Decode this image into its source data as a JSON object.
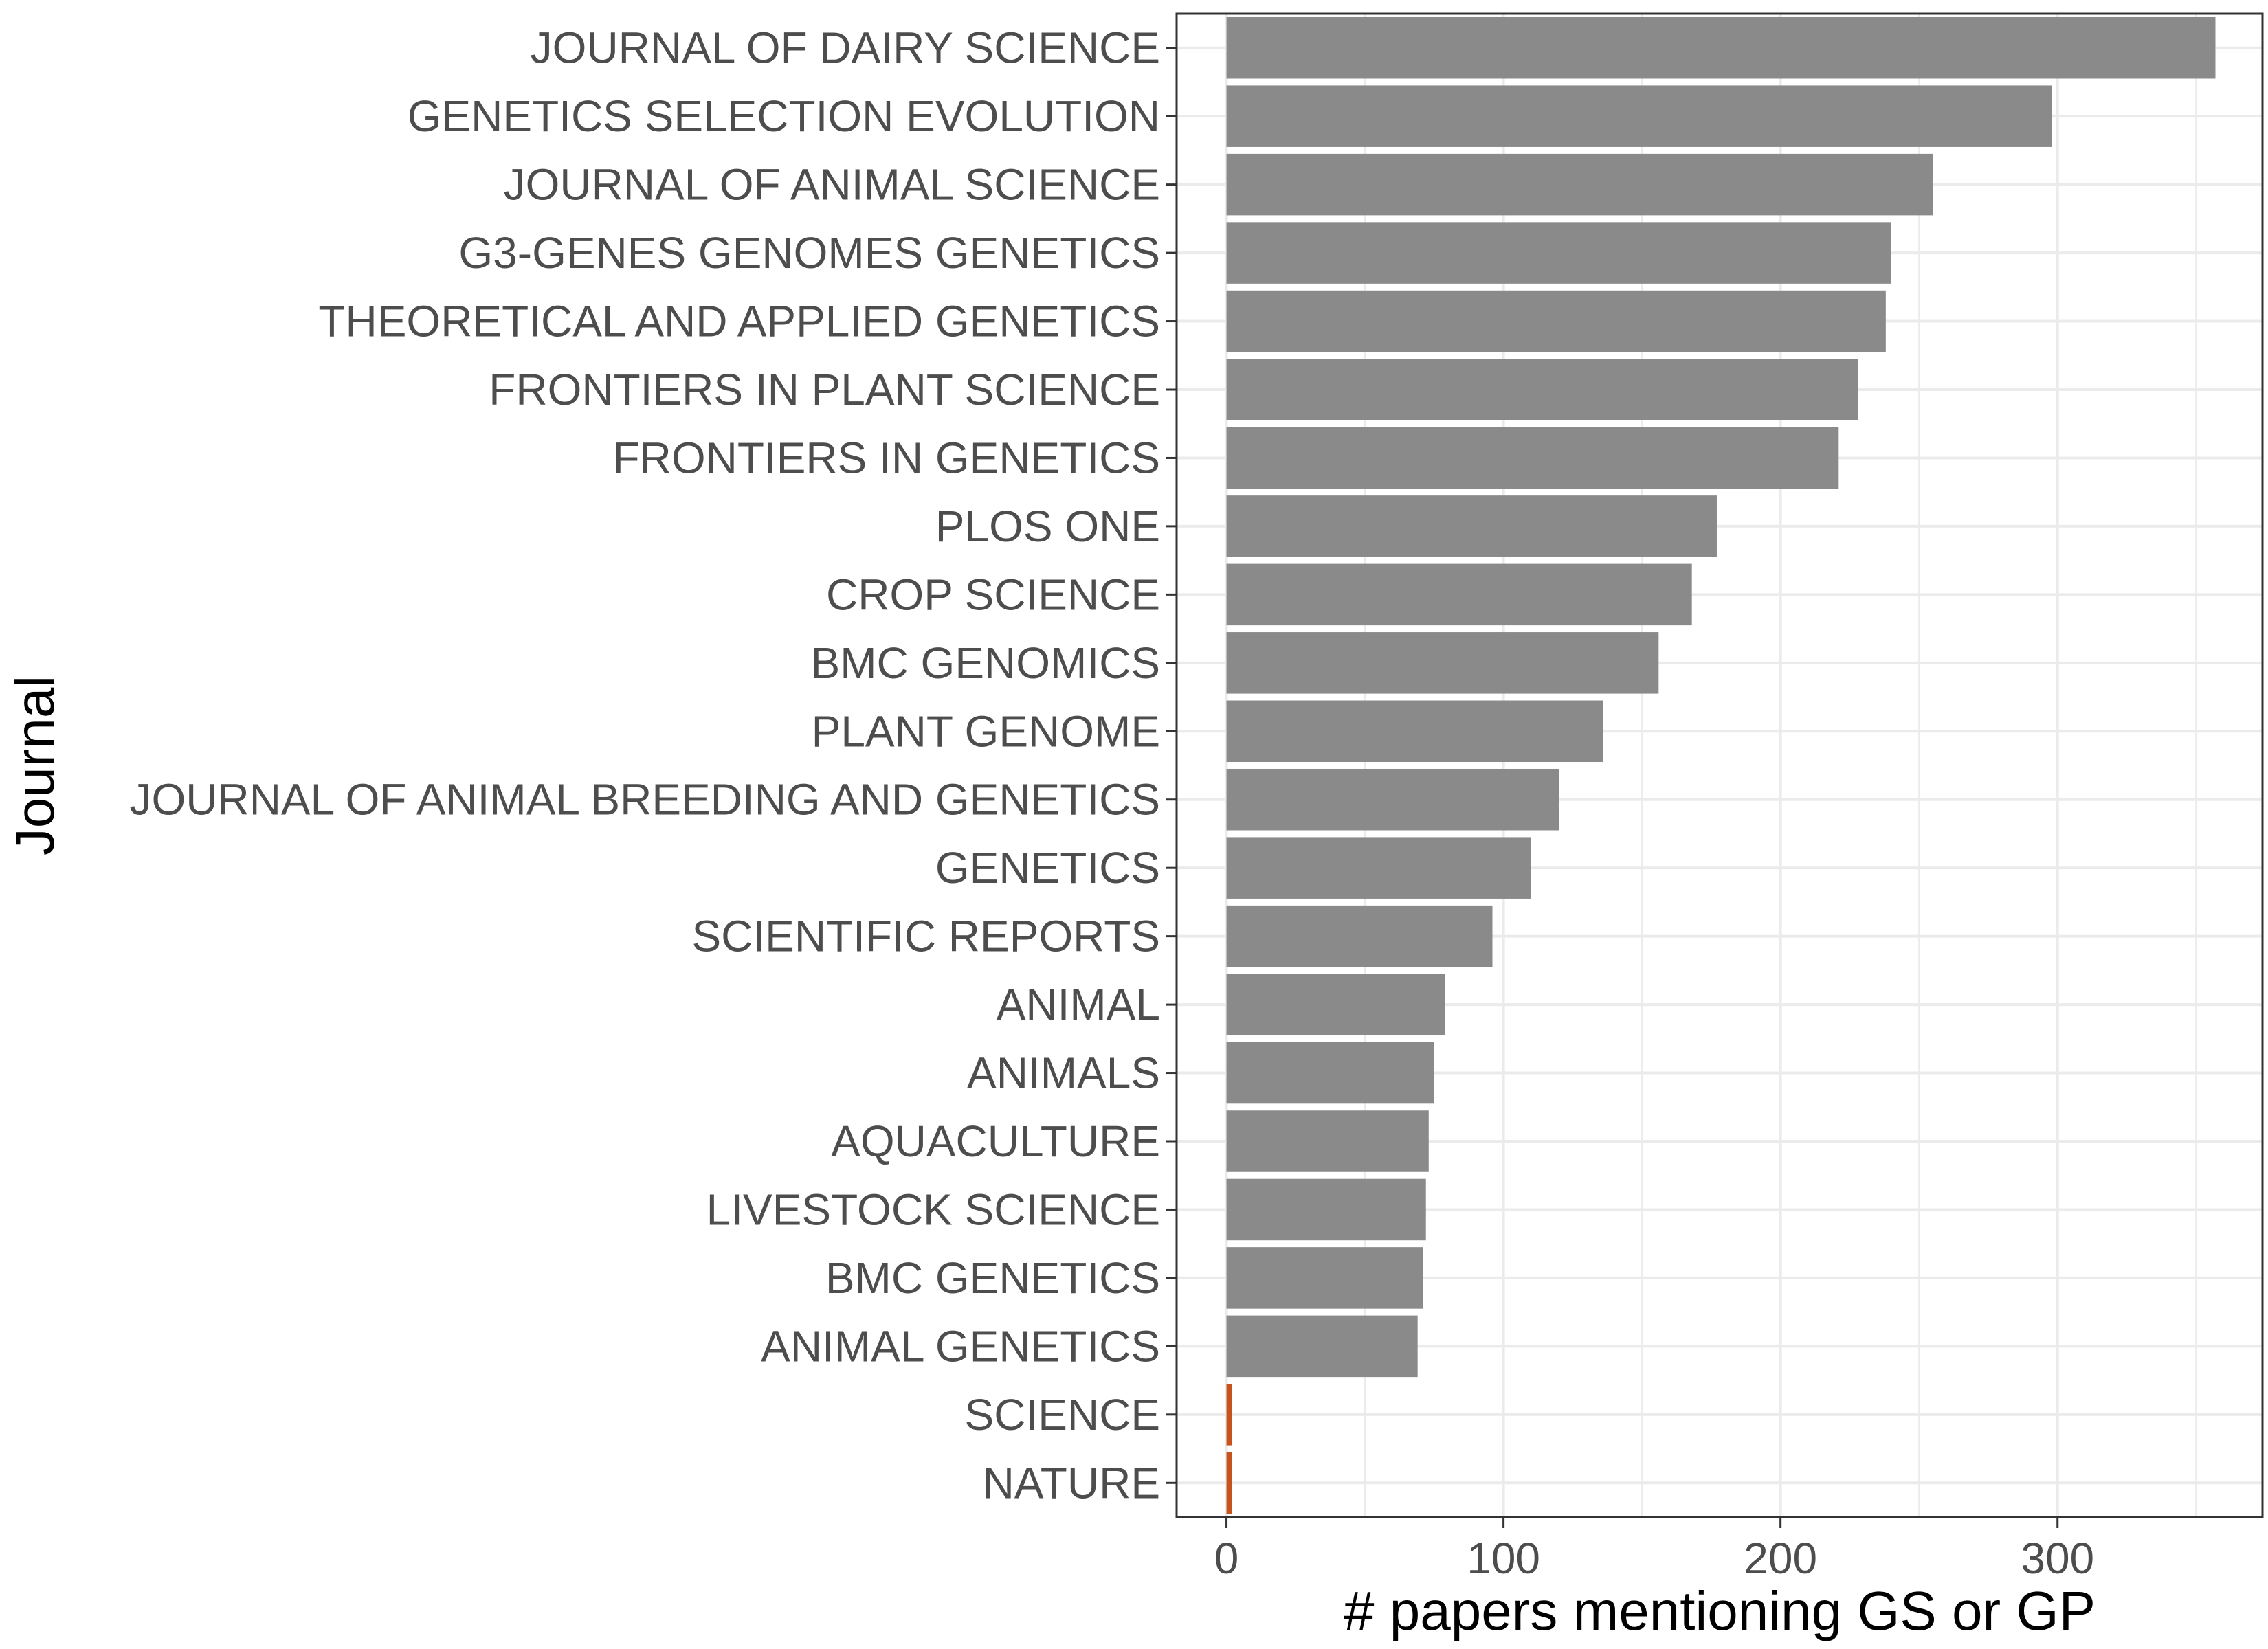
{
  "chart_data": {
    "type": "bar",
    "orientation": "horizontal",
    "xlabel": "# papers mentioning GS or GP",
    "ylabel": "Journal",
    "xlim": [
      -18,
      374
    ],
    "x_ticks": [
      0,
      100,
      200,
      300
    ],
    "x_minor_ticks": [
      50,
      150,
      250,
      350
    ],
    "grid": true,
    "legend": "none",
    "colors": {
      "default": "#8a8a8a",
      "highlight": "#c4531e",
      "grid": "#ebebeb",
      "panel_border": "#333333"
    },
    "categories": [
      "JOURNAL OF DAIRY SCIENCE",
      "GENETICS SELECTION EVOLUTION",
      "JOURNAL OF ANIMAL SCIENCE",
      "G3-GENES GENOMES GENETICS",
      "THEORETICAL AND APPLIED GENETICS",
      "FRONTIERS IN PLANT SCIENCE",
      "FRONTIERS IN GENETICS",
      "PLOS ONE",
      "CROP SCIENCE",
      "BMC GENOMICS",
      "PLANT GENOME",
      "JOURNAL OF ANIMAL BREEDING AND GENETICS",
      "GENETICS",
      "SCIENTIFIC REPORTS",
      "ANIMAL",
      "ANIMALS",
      "AQUACULTURE",
      "LIVESTOCK SCIENCE",
      "BMC GENETICS",
      "ANIMAL GENETICS",
      "SCIENCE",
      "NATURE"
    ],
    "values": [
      357,
      298,
      255,
      240,
      238,
      228,
      221,
      177,
      168,
      156,
      136,
      120,
      110,
      96,
      79,
      75,
      73,
      72,
      71,
      69,
      2,
      2
    ],
    "highlighted": [
      "SCIENCE",
      "NATURE"
    ]
  }
}
